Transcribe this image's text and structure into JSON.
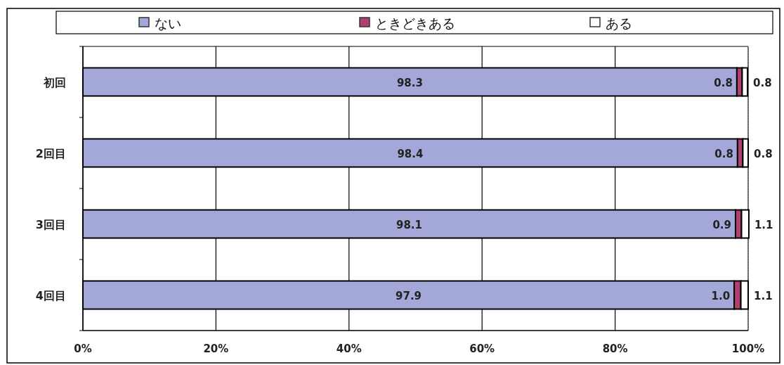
{
  "chart_data": {
    "type": "bar",
    "orientation": "horizontal",
    "stacked": true,
    "categories": [
      "初回",
      "2回目",
      "3回目",
      "4回目"
    ],
    "series": [
      {
        "name": "ない",
        "color": "#a3a8d8",
        "values": [
          98.3,
          98.4,
          98.1,
          97.9
        ],
        "value_labels": [
          "98.3",
          "98.4",
          "98.1",
          "97.9"
        ]
      },
      {
        "name": "ときどきある",
        "color": "#b0406e",
        "values": [
          0.8,
          0.8,
          0.9,
          1.0
        ],
        "value_labels": [
          "0.8",
          "0.8",
          "0.9",
          "1.0"
        ]
      },
      {
        "name": "ある",
        "color": "#ffffff",
        "values": [
          0.8,
          0.8,
          1.1,
          1.1
        ],
        "value_labels": [
          "0.8",
          "0.8",
          "1.1",
          "1.1"
        ]
      }
    ],
    "xlim": [
      0,
      100
    ],
    "xticks": [
      {
        "value": 0,
        "label": "0%"
      },
      {
        "value": 20,
        "label": "20%"
      },
      {
        "value": 40,
        "label": "40%"
      },
      {
        "value": 60,
        "label": "60%"
      },
      {
        "value": 80,
        "label": "80%"
      },
      {
        "value": 100,
        "label": "100%"
      }
    ],
    "grid": "x",
    "legend": "top"
  }
}
